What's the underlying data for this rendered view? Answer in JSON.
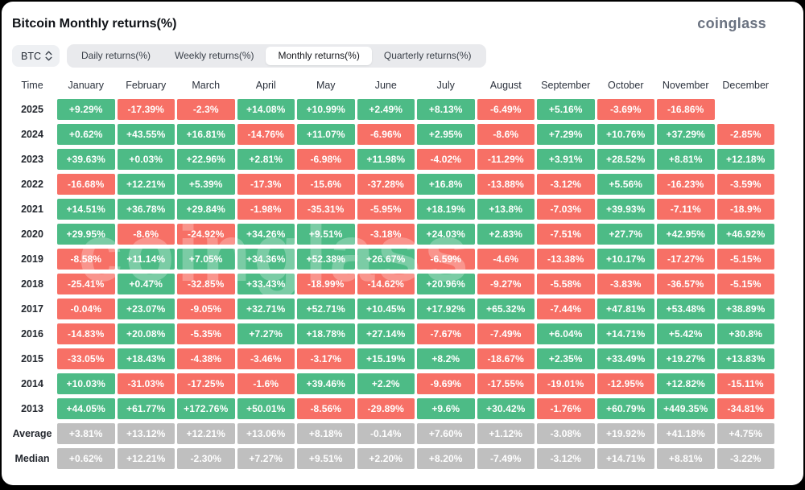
{
  "header": {
    "title": "Bitcoin Monthly returns(%)",
    "logo": "coinglass"
  },
  "toolbar": {
    "coin_selector": {
      "label": "BTC",
      "icon": "updown-chevron-icon"
    },
    "tabs": [
      {
        "label": "Daily returns(%)",
        "active": false
      },
      {
        "label": "Weekly returns(%)",
        "active": false
      },
      {
        "label": "Monthly returns(%)",
        "active": true
      },
      {
        "label": "Quarterly returns(%)",
        "active": false
      }
    ]
  },
  "colors": {
    "positive": "#4dbb86",
    "negative": "#f77066",
    "neutral": "#bfbfbf"
  },
  "watermark": "coinglass",
  "table": {
    "time_header": "Time",
    "months": [
      "January",
      "February",
      "March",
      "April",
      "May",
      "June",
      "July",
      "August",
      "September",
      "October",
      "November",
      "December"
    ],
    "rows": [
      {
        "label": "2025",
        "type": "year",
        "cells": [
          {
            "v": "+9.29%",
            "c": "g"
          },
          {
            "v": "-17.39%",
            "c": "r"
          },
          {
            "v": "-2.3%",
            "c": "r"
          },
          {
            "v": "+14.08%",
            "c": "g"
          },
          {
            "v": "+10.99%",
            "c": "g"
          },
          {
            "v": "+2.49%",
            "c": "g"
          },
          {
            "v": "+8.13%",
            "c": "g"
          },
          {
            "v": "-6.49%",
            "c": "r"
          },
          {
            "v": "+5.16%",
            "c": "g"
          },
          {
            "v": "-3.69%",
            "c": "r"
          },
          {
            "v": "-16.86%",
            "c": "r"
          },
          {
            "v": "",
            "c": "e"
          }
        ]
      },
      {
        "label": "2024",
        "type": "year",
        "cells": [
          {
            "v": "+0.62%",
            "c": "g"
          },
          {
            "v": "+43.55%",
            "c": "g"
          },
          {
            "v": "+16.81%",
            "c": "g"
          },
          {
            "v": "-14.76%",
            "c": "r"
          },
          {
            "v": "+11.07%",
            "c": "g"
          },
          {
            "v": "-6.96%",
            "c": "r"
          },
          {
            "v": "+2.95%",
            "c": "g"
          },
          {
            "v": "-8.6%",
            "c": "r"
          },
          {
            "v": "+7.29%",
            "c": "g"
          },
          {
            "v": "+10.76%",
            "c": "g"
          },
          {
            "v": "+37.29%",
            "c": "g"
          },
          {
            "v": "-2.85%",
            "c": "r"
          }
        ]
      },
      {
        "label": "2023",
        "type": "year",
        "cells": [
          {
            "v": "+39.63%",
            "c": "g"
          },
          {
            "v": "+0.03%",
            "c": "g"
          },
          {
            "v": "+22.96%",
            "c": "g"
          },
          {
            "v": "+2.81%",
            "c": "g"
          },
          {
            "v": "-6.98%",
            "c": "r"
          },
          {
            "v": "+11.98%",
            "c": "g"
          },
          {
            "v": "-4.02%",
            "c": "r"
          },
          {
            "v": "-11.29%",
            "c": "r"
          },
          {
            "v": "+3.91%",
            "c": "g"
          },
          {
            "v": "+28.52%",
            "c": "g"
          },
          {
            "v": "+8.81%",
            "c": "g"
          },
          {
            "v": "+12.18%",
            "c": "g"
          }
        ]
      },
      {
        "label": "2022",
        "type": "year",
        "cells": [
          {
            "v": "-16.68%",
            "c": "r"
          },
          {
            "v": "+12.21%",
            "c": "g"
          },
          {
            "v": "+5.39%",
            "c": "g"
          },
          {
            "v": "-17.3%",
            "c": "r"
          },
          {
            "v": "-15.6%",
            "c": "r"
          },
          {
            "v": "-37.28%",
            "c": "r"
          },
          {
            "v": "+16.8%",
            "c": "g"
          },
          {
            "v": "-13.88%",
            "c": "r"
          },
          {
            "v": "-3.12%",
            "c": "r"
          },
          {
            "v": "+5.56%",
            "c": "g"
          },
          {
            "v": "-16.23%",
            "c": "r"
          },
          {
            "v": "-3.59%",
            "c": "r"
          }
        ]
      },
      {
        "label": "2021",
        "type": "year",
        "cells": [
          {
            "v": "+14.51%",
            "c": "g"
          },
          {
            "v": "+36.78%",
            "c": "g"
          },
          {
            "v": "+29.84%",
            "c": "g"
          },
          {
            "v": "-1.98%",
            "c": "r"
          },
          {
            "v": "-35.31%",
            "c": "r"
          },
          {
            "v": "-5.95%",
            "c": "r"
          },
          {
            "v": "+18.19%",
            "c": "g"
          },
          {
            "v": "+13.8%",
            "c": "g"
          },
          {
            "v": "-7.03%",
            "c": "r"
          },
          {
            "v": "+39.93%",
            "c": "g"
          },
          {
            "v": "-7.11%",
            "c": "r"
          },
          {
            "v": "-18.9%",
            "c": "r"
          }
        ]
      },
      {
        "label": "2020",
        "type": "year",
        "cells": [
          {
            "v": "+29.95%",
            "c": "g"
          },
          {
            "v": "-8.6%",
            "c": "r"
          },
          {
            "v": "-24.92%",
            "c": "r"
          },
          {
            "v": "+34.26%",
            "c": "g"
          },
          {
            "v": "+9.51%",
            "c": "g"
          },
          {
            "v": "-3.18%",
            "c": "r"
          },
          {
            "v": "+24.03%",
            "c": "g"
          },
          {
            "v": "+2.83%",
            "c": "g"
          },
          {
            "v": "-7.51%",
            "c": "r"
          },
          {
            "v": "+27.7%",
            "c": "g"
          },
          {
            "v": "+42.95%",
            "c": "g"
          },
          {
            "v": "+46.92%",
            "c": "g"
          }
        ]
      },
      {
        "label": "2019",
        "type": "year",
        "cells": [
          {
            "v": "-8.58%",
            "c": "r"
          },
          {
            "v": "+11.14%",
            "c": "g"
          },
          {
            "v": "+7.05%",
            "c": "g"
          },
          {
            "v": "+34.36%",
            "c": "g"
          },
          {
            "v": "+52.38%",
            "c": "g"
          },
          {
            "v": "+26.67%",
            "c": "g"
          },
          {
            "v": "-6.59%",
            "c": "r"
          },
          {
            "v": "-4.6%",
            "c": "r"
          },
          {
            "v": "-13.38%",
            "c": "r"
          },
          {
            "v": "+10.17%",
            "c": "g"
          },
          {
            "v": "-17.27%",
            "c": "r"
          },
          {
            "v": "-5.15%",
            "c": "r"
          }
        ]
      },
      {
        "label": "2018",
        "type": "year",
        "cells": [
          {
            "v": "-25.41%",
            "c": "r"
          },
          {
            "v": "+0.47%",
            "c": "g"
          },
          {
            "v": "-32.85%",
            "c": "r"
          },
          {
            "v": "+33.43%",
            "c": "g"
          },
          {
            "v": "-18.99%",
            "c": "r"
          },
          {
            "v": "-14.62%",
            "c": "r"
          },
          {
            "v": "+20.96%",
            "c": "g"
          },
          {
            "v": "-9.27%",
            "c": "r"
          },
          {
            "v": "-5.58%",
            "c": "r"
          },
          {
            "v": "-3.83%",
            "c": "r"
          },
          {
            "v": "-36.57%",
            "c": "r"
          },
          {
            "v": "-5.15%",
            "c": "r"
          }
        ]
      },
      {
        "label": "2017",
        "type": "year",
        "cells": [
          {
            "v": "-0.04%",
            "c": "r"
          },
          {
            "v": "+23.07%",
            "c": "g"
          },
          {
            "v": "-9.05%",
            "c": "r"
          },
          {
            "v": "+32.71%",
            "c": "g"
          },
          {
            "v": "+52.71%",
            "c": "g"
          },
          {
            "v": "+10.45%",
            "c": "g"
          },
          {
            "v": "+17.92%",
            "c": "g"
          },
          {
            "v": "+65.32%",
            "c": "g"
          },
          {
            "v": "-7.44%",
            "c": "r"
          },
          {
            "v": "+47.81%",
            "c": "g"
          },
          {
            "v": "+53.48%",
            "c": "g"
          },
          {
            "v": "+38.89%",
            "c": "g"
          }
        ]
      },
      {
        "label": "2016",
        "type": "year",
        "cells": [
          {
            "v": "-14.83%",
            "c": "r"
          },
          {
            "v": "+20.08%",
            "c": "g"
          },
          {
            "v": "-5.35%",
            "c": "r"
          },
          {
            "v": "+7.27%",
            "c": "g"
          },
          {
            "v": "+18.78%",
            "c": "g"
          },
          {
            "v": "+27.14%",
            "c": "g"
          },
          {
            "v": "-7.67%",
            "c": "r"
          },
          {
            "v": "-7.49%",
            "c": "r"
          },
          {
            "v": "+6.04%",
            "c": "g"
          },
          {
            "v": "+14.71%",
            "c": "g"
          },
          {
            "v": "+5.42%",
            "c": "g"
          },
          {
            "v": "+30.8%",
            "c": "g"
          }
        ]
      },
      {
        "label": "2015",
        "type": "year",
        "cells": [
          {
            "v": "-33.05%",
            "c": "r"
          },
          {
            "v": "+18.43%",
            "c": "g"
          },
          {
            "v": "-4.38%",
            "c": "r"
          },
          {
            "v": "-3.46%",
            "c": "r"
          },
          {
            "v": "-3.17%",
            "c": "r"
          },
          {
            "v": "+15.19%",
            "c": "g"
          },
          {
            "v": "+8.2%",
            "c": "g"
          },
          {
            "v": "-18.67%",
            "c": "r"
          },
          {
            "v": "+2.35%",
            "c": "g"
          },
          {
            "v": "+33.49%",
            "c": "g"
          },
          {
            "v": "+19.27%",
            "c": "g"
          },
          {
            "v": "+13.83%",
            "c": "g"
          }
        ]
      },
      {
        "label": "2014",
        "type": "year",
        "cells": [
          {
            "v": "+10.03%",
            "c": "g"
          },
          {
            "v": "-31.03%",
            "c": "r"
          },
          {
            "v": "-17.25%",
            "c": "r"
          },
          {
            "v": "-1.6%",
            "c": "r"
          },
          {
            "v": "+39.46%",
            "c": "g"
          },
          {
            "v": "+2.2%",
            "c": "g"
          },
          {
            "v": "-9.69%",
            "c": "r"
          },
          {
            "v": "-17.55%",
            "c": "r"
          },
          {
            "v": "-19.01%",
            "c": "r"
          },
          {
            "v": "-12.95%",
            "c": "r"
          },
          {
            "v": "+12.82%",
            "c": "g"
          },
          {
            "v": "-15.11%",
            "c": "r"
          }
        ]
      },
      {
        "label": "2013",
        "type": "year",
        "cells": [
          {
            "v": "+44.05%",
            "c": "g"
          },
          {
            "v": "+61.77%",
            "c": "g"
          },
          {
            "v": "+172.76%",
            "c": "g"
          },
          {
            "v": "+50.01%",
            "c": "g"
          },
          {
            "v": "-8.56%",
            "c": "r"
          },
          {
            "v": "-29.89%",
            "c": "r"
          },
          {
            "v": "+9.6%",
            "c": "g"
          },
          {
            "v": "+30.42%",
            "c": "g"
          },
          {
            "v": "-1.76%",
            "c": "r"
          },
          {
            "v": "+60.79%",
            "c": "g"
          },
          {
            "v": "+449.35%",
            "c": "g"
          },
          {
            "v": "-34.81%",
            "c": "r"
          }
        ]
      },
      {
        "label": "Average",
        "type": "summary",
        "cells": [
          {
            "v": "+3.81%",
            "c": "n"
          },
          {
            "v": "+13.12%",
            "c": "n"
          },
          {
            "v": "+12.21%",
            "c": "n"
          },
          {
            "v": "+13.06%",
            "c": "n"
          },
          {
            "v": "+8.18%",
            "c": "n"
          },
          {
            "v": "-0.14%",
            "c": "n"
          },
          {
            "v": "+7.60%",
            "c": "n"
          },
          {
            "v": "+1.12%",
            "c": "n"
          },
          {
            "v": "-3.08%",
            "c": "n"
          },
          {
            "v": "+19.92%",
            "c": "n"
          },
          {
            "v": "+41.18%",
            "c": "n"
          },
          {
            "v": "+4.75%",
            "c": "n"
          }
        ]
      },
      {
        "label": "Median",
        "type": "summary",
        "cells": [
          {
            "v": "+0.62%",
            "c": "n"
          },
          {
            "v": "+12.21%",
            "c": "n"
          },
          {
            "v": "-2.30%",
            "c": "n"
          },
          {
            "v": "+7.27%",
            "c": "n"
          },
          {
            "v": "+9.51%",
            "c": "n"
          },
          {
            "v": "+2.20%",
            "c": "n"
          },
          {
            "v": "+8.20%",
            "c": "n"
          },
          {
            "v": "-7.49%",
            "c": "n"
          },
          {
            "v": "-3.12%",
            "c": "n"
          },
          {
            "v": "+14.71%",
            "c": "n"
          },
          {
            "v": "+8.81%",
            "c": "n"
          },
          {
            "v": "-3.22%",
            "c": "n"
          }
        ]
      }
    ]
  }
}
